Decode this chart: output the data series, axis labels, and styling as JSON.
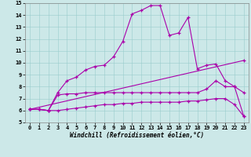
{
  "xlabel": "Windchill (Refroidissement éolien,°C)",
  "bg_color": "#cce8e8",
  "line_color": "#aa00aa",
  "xlim": [
    -0.5,
    23.5
  ],
  "ylim": [
    5,
    15
  ],
  "yticks": [
    5,
    6,
    7,
    8,
    9,
    10,
    11,
    12,
    13,
    14,
    15
  ],
  "xticks": [
    0,
    1,
    2,
    3,
    4,
    5,
    6,
    7,
    8,
    9,
    10,
    11,
    12,
    13,
    14,
    15,
    16,
    17,
    18,
    19,
    20,
    21,
    22,
    23
  ],
  "series": [
    {
      "x": [
        0,
        1,
        2,
        3,
        4,
        5,
        6,
        7,
        8,
        9,
        10,
        11,
        12,
        13,
        14,
        15,
        16,
        17,
        18,
        19,
        20,
        21,
        22,
        23
      ],
      "y": [
        6.1,
        6.1,
        6.0,
        7.5,
        8.5,
        8.8,
        9.4,
        9.7,
        9.8,
        10.5,
        11.8,
        14.1,
        14.4,
        14.8,
        14.8,
        12.3,
        12.5,
        13.8,
        9.5,
        9.8,
        9.9,
        8.5,
        8.0,
        7.5
      ]
    },
    {
      "x": [
        0,
        1,
        2,
        3,
        4,
        5,
        6,
        7,
        8,
        9,
        10,
        11,
        12,
        13,
        14,
        15,
        16,
        17,
        18,
        19,
        20,
        21,
        22,
        23
      ],
      "y": [
        6.1,
        6.1,
        6.0,
        6.0,
        6.1,
        6.2,
        6.3,
        6.4,
        6.5,
        6.5,
        6.6,
        6.6,
        6.7,
        6.7,
        6.7,
        6.7,
        6.7,
        6.8,
        6.8,
        6.9,
        7.0,
        7.0,
        6.5,
        5.5
      ]
    },
    {
      "x": [
        0,
        1,
        2,
        3,
        4,
        5,
        6,
        7,
        8,
        9,
        10,
        11,
        12,
        13,
        14,
        15,
        16,
        17,
        18,
        19,
        20,
        21,
        22,
        23
      ],
      "y": [
        6.1,
        6.1,
        6.0,
        7.3,
        7.4,
        7.4,
        7.5,
        7.5,
        7.5,
        7.5,
        7.5,
        7.5,
        7.5,
        7.5,
        7.5,
        7.5,
        7.5,
        7.5,
        7.5,
        7.8,
        8.5,
        8.0,
        8.0,
        5.5
      ]
    },
    {
      "x": [
        0,
        23
      ],
      "y": [
        6.1,
        10.2
      ]
    }
  ]
}
